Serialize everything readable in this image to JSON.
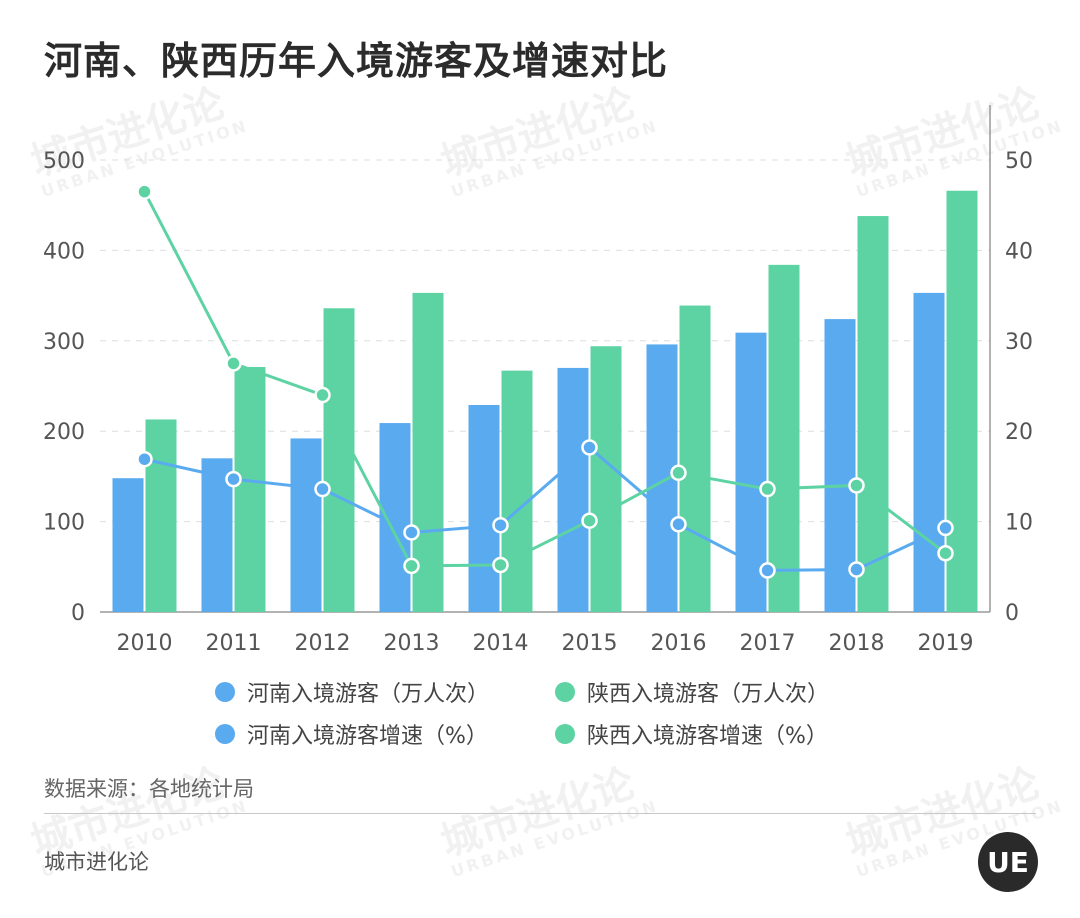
{
  "title": "河南、陕西历年入境游客及增速对比",
  "watermark": {
    "cn": "城市进化论",
    "en": "URBAN EVOLUTION"
  },
  "source": "数据来源：各地统计局",
  "footer": "城市进化论",
  "logo_text": "UE",
  "colors": {
    "henan": "#5aaaf0",
    "shaanxi": "#5dd3a3",
    "grid": "#dddddd",
    "axis": "#999999"
  },
  "chart_data": {
    "type": "bar+line",
    "title": "河南、陕西历年入境游客及增速对比",
    "categories": [
      "2010",
      "2011",
      "2012",
      "2013",
      "2014",
      "2015",
      "2016",
      "2017",
      "2018",
      "2019"
    ],
    "left_axis": {
      "ylim": [
        0,
        500
      ],
      "ticks": [
        "0",
        "100",
        "200",
        "300",
        "400",
        "500"
      ]
    },
    "right_axis": {
      "ylim": [
        0,
        50
      ],
      "ticks": [
        "0",
        "10",
        "20",
        "30",
        "40",
        "50"
      ]
    },
    "series": [
      {
        "name": "河南入境游客（万人次）",
        "type": "bar",
        "axis": "left",
        "color": "#5aaaf0",
        "values": [
          148,
          170,
          192,
          209,
          229,
          270,
          296,
          309,
          324,
          353
        ]
      },
      {
        "name": "陕西入境游客（万人次）",
        "type": "bar",
        "axis": "left",
        "color": "#5dd3a3",
        "values": [
          213,
          271,
          336,
          353,
          267,
          294,
          339,
          384,
          438,
          466
        ]
      },
      {
        "name": "河南入境游客增速（%）",
        "type": "line",
        "axis": "right",
        "color": "#5aaaf0",
        "values": [
          16.9,
          14.7,
          13.6,
          8.8,
          9.6,
          18.2,
          9.7,
          4.6,
          4.7,
          9.3
        ]
      },
      {
        "name": "陕西入境游客增速（%）",
        "type": "line",
        "axis": "right",
        "color": "#5dd3a3",
        "values": [
          46.5,
          27.5,
          24.0,
          5.1,
          5.2,
          10.1,
          15.4,
          13.6,
          14.0,
          6.5
        ]
      }
    ],
    "legend": [
      {
        "label": "河南入境游客（万人次）",
        "color": "#5aaaf0"
      },
      {
        "label": "陕西入境游客（万人次）",
        "color": "#5dd3a3"
      },
      {
        "label": "河南入境游客增速（%）",
        "color": "#5aaaf0"
      },
      {
        "label": "陕西入境游客增速（%）",
        "color": "#5dd3a3"
      }
    ]
  }
}
